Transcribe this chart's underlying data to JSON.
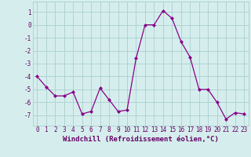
{
  "x": [
    0,
    1,
    2,
    3,
    4,
    5,
    6,
    7,
    8,
    9,
    10,
    11,
    12,
    13,
    14,
    15,
    16,
    17,
    18,
    19,
    20,
    21,
    22,
    23
  ],
  "y": [
    -4.0,
    -4.8,
    -5.5,
    -5.5,
    -5.2,
    -6.9,
    -6.7,
    -4.9,
    -5.8,
    -6.7,
    -6.6,
    -2.6,
    0.0,
    0.0,
    1.1,
    0.5,
    -1.3,
    -2.5,
    -5.0,
    -5.0,
    -6.0,
    -7.3,
    -6.8,
    -6.9
  ],
  "line_color": "#880088",
  "marker": "D",
  "marker_size": 2.0,
  "bg_color": "#d5eeed",
  "grid_color": "#aacece",
  "xlabel": "Windchill (Refroidissement éolien,°C)",
  "xlabel_fontsize": 6.5,
  "ylabel_ticks": [
    1,
    0,
    -1,
    -2,
    -3,
    -4,
    -5,
    -6,
    -7
  ],
  "xlim": [
    -0.5,
    23.5
  ],
  "ylim": [
    -7.8,
    1.8
  ],
  "xtick_labels": [
    "0",
    "1",
    "2",
    "3",
    "4",
    "5",
    "6",
    "7",
    "8",
    "9",
    "10",
    "11",
    "12",
    "13",
    "14",
    "15",
    "16",
    "17",
    "18",
    "19",
    "20",
    "21",
    "22",
    "23"
  ],
  "tick_fontsize": 5.5,
  "label_color": "#660066"
}
